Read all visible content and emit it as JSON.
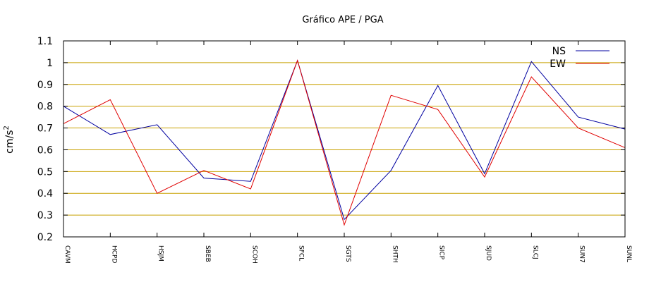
{
  "chart_data": {
    "type": "line",
    "title": "Gráfico  APE / PGA",
    "ylabel": "cm/s",
    "ylabel_superscript": "2",
    "xlabel": "",
    "ylim": [
      0.2,
      1.1
    ],
    "yticks": [
      0.2,
      0.3,
      0.4,
      0.5,
      0.6,
      0.7,
      0.8,
      0.9,
      1,
      1.1
    ],
    "ytick_labels": [
      "0.2",
      "0.3",
      "0.4",
      "0.5",
      "0.6",
      "0.7",
      "0.8",
      "0.9",
      "1",
      "1.1"
    ],
    "grid": true,
    "grid_color": "#c8a000",
    "legend_position": "top-right",
    "categories": [
      "CAVM",
      "HCPD",
      "HSJM",
      "SBEB",
      "SCOH",
      "SFCL",
      "SGTS",
      "SHTH",
      "SICP",
      "SJUD",
      "SLCJ",
      "SUN7",
      "SUNL"
    ],
    "series": [
      {
        "name": "NS",
        "color": "#0000a0",
        "values": [
          0.8,
          0.67,
          0.715,
          0.47,
          0.455,
          1.01,
          0.28,
          0.505,
          0.895,
          0.49,
          1.005,
          0.75,
          0.695
        ]
      },
      {
        "name": "EW",
        "color": "#e00000",
        "values": [
          0.72,
          0.83,
          0.4,
          0.505,
          0.42,
          1.01,
          0.255,
          0.85,
          0.785,
          0.475,
          0.935,
          0.7,
          0.61
        ]
      }
    ]
  }
}
